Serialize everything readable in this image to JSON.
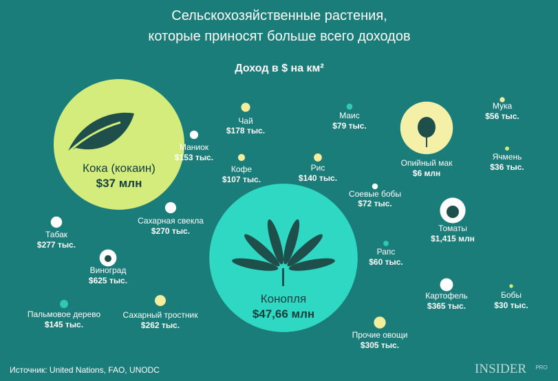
{
  "chart_data": {
    "type": "bubble",
    "title_lines": [
      "Сельскохозяйственные растения,",
      "которые приносят больше всего доходов"
    ],
    "subtitle": "Доход в $ на км²",
    "categories": [
      "Кока (кокаин)",
      "Конопля",
      "Чай",
      "Маниок",
      "Кофе",
      "Маис",
      "Рис",
      "Соевые бобы",
      "Опийный мак",
      "Мука",
      "Ячмень",
      "Томаты",
      "Рапс",
      "Картофель",
      "Бобы",
      "Прочие овощи",
      "Сахарная свекла",
      "Табак",
      "Виноград",
      "Пальмовое дерево",
      "Сахарный тростник"
    ],
    "values": [
      37000000,
      47660000,
      178000,
      153000,
      107000,
      79000,
      140000,
      72000,
      6000000,
      56000,
      36000,
      1415000,
      60000,
      365000,
      30000,
      305000,
      270000,
      277000,
      625000,
      145000,
      262000
    ],
    "value_labels": [
      "$37 млн",
      "$47,66 млн",
      "$178 тыс.",
      "$153 тыс.",
      "$107 тыс.",
      "$79 тыс.",
      "$140 тыс.",
      "$72 тыс.",
      "$6 млн",
      "$56 тыс.",
      "$36 тыс.",
      "$1,415 млн",
      "$60 тыс.",
      "$365 тыс.",
      "$30 тыс.",
      "$305 тыс.",
      "$270 тыс.",
      "$277 тыс.",
      "$625 тыс.",
      "$145 тыс.",
      "$262 тыс."
    ],
    "colors": [
      "#d3ec7c",
      "#2fd8c3",
      "#f2ee9e",
      "#ffffff",
      "#f2ee9e",
      "#2fc9b3",
      "#f2ee9e",
      "#ffffff",
      "#f4f0a8",
      "#f2ee9e",
      "#d3ec7c",
      "#ffffff",
      "#2fc9b3",
      "#ffffff",
      "#d3ec7c",
      "#f2ee9e",
      "#ffffff",
      "#ffffff",
      "#ffffff",
      "#2fc9b3",
      "#f2ee9e"
    ],
    "source": "Источник: United Nations, FAO, UNODC",
    "logo": "INSIDER",
    "logo_suffix": "PRO"
  }
}
